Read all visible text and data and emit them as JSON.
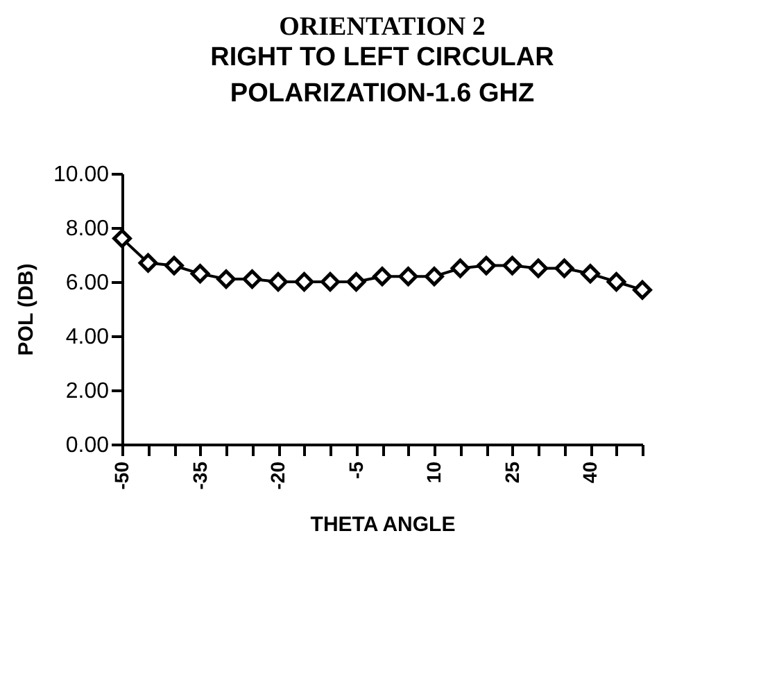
{
  "chart_data": {
    "type": "line",
    "title": "ORIENTATION 2",
    "subtitle": "RIGHT TO LEFT CIRCULAR\nPOLARIZATION-1.6  GHZ",
    "xlabel": "THETA ANGLE",
    "ylabel": "POL  (DB)",
    "categories": [
      "-50",
      null,
      null,
      "-35",
      null,
      null,
      "-20",
      null,
      null,
      "-5",
      null,
      null,
      "10",
      null,
      null,
      "25",
      null,
      null,
      "40",
      null,
      null
    ],
    "series": [
      {
        "color": "#000000",
        "values": [
          7.6,
          6.7,
          6.6,
          6.3,
          6.1,
          6.1,
          6.0,
          6.0,
          6.0,
          6.0,
          6.2,
          6.2,
          6.2,
          6.5,
          6.6,
          6.6,
          6.5,
          6.5,
          6.3,
          6.0,
          5.7
        ]
      }
    ],
    "ylim": [
      0,
      10
    ],
    "yticks": [
      {
        "value": 0,
        "label": "0.00"
      },
      {
        "value": 2,
        "label": "2.00"
      },
      {
        "value": 4,
        "label": "4.00"
      },
      {
        "value": 6,
        "label": "6.00"
      },
      {
        "value": 8,
        "label": "8.00"
      },
      {
        "value": 10,
        "label": "10.00"
      }
    ],
    "grid": false,
    "marker": "diamond",
    "line_style": "solid"
  }
}
